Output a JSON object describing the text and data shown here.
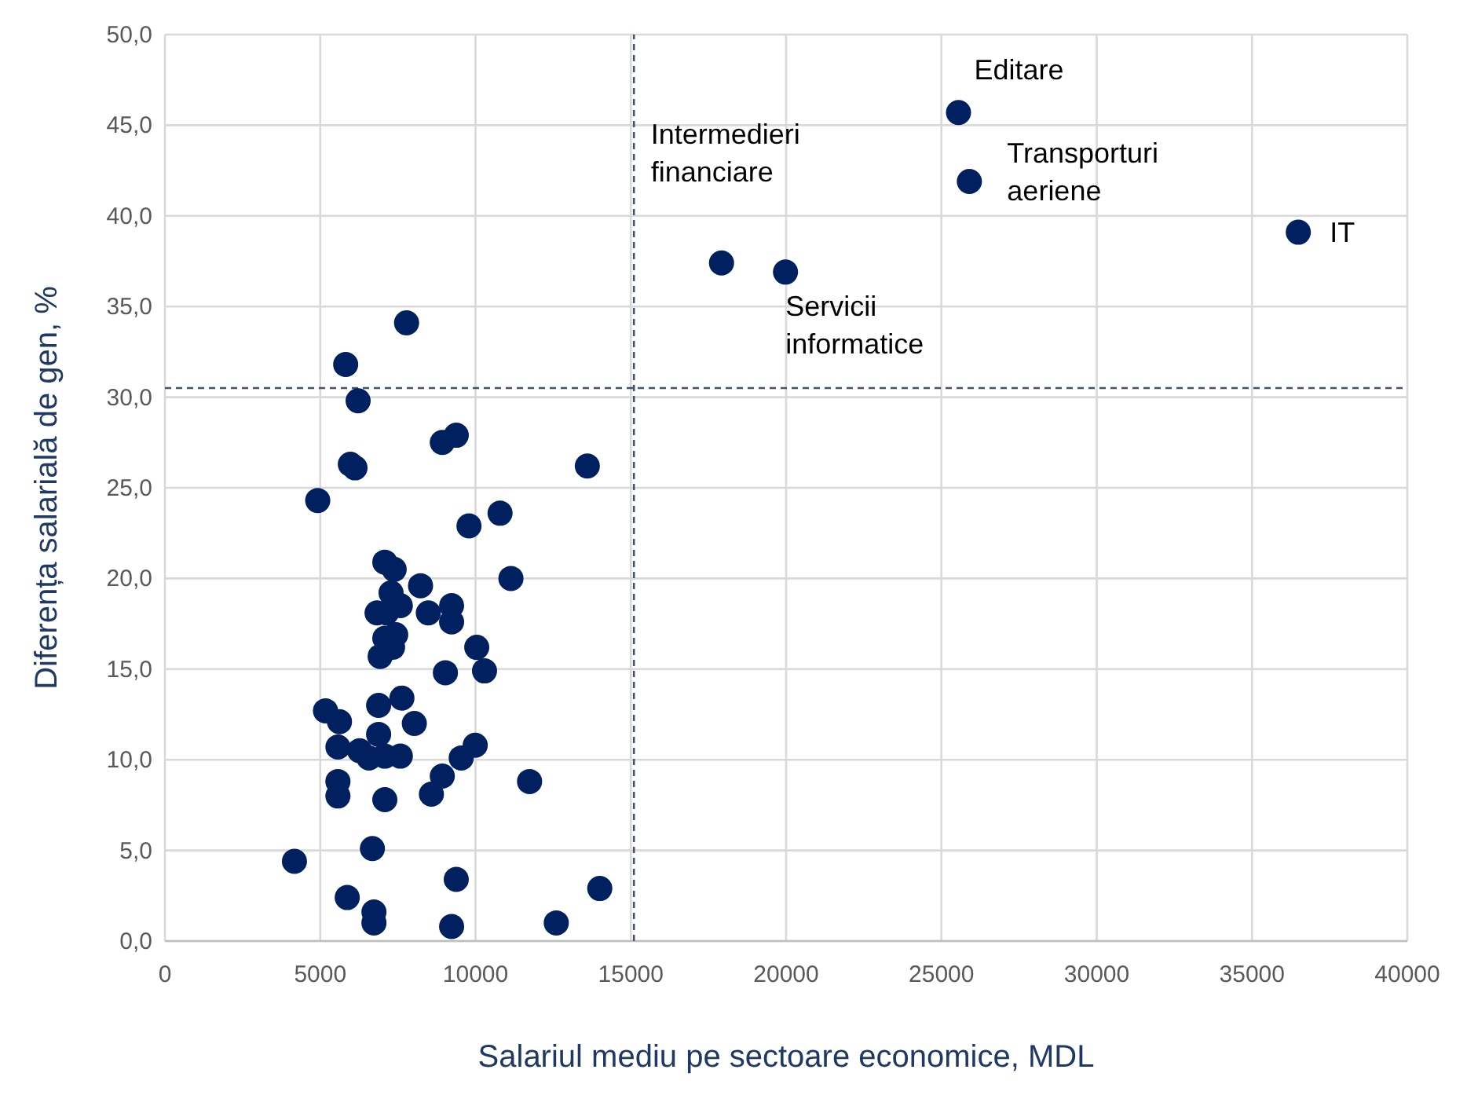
{
  "chart_data": {
    "type": "scatter",
    "xlabel": "Salariul mediu pe sectoare economice, MDL",
    "ylabel": "Diferența salarială de gen, %",
    "x": [
      7780,
      5820,
      6220,
      8930,
      9380,
      13600,
      5970,
      6120,
      4920,
      10790,
      9790,
      11140,
      7080,
      7380,
      8230,
      7280,
      7130,
      7580,
      8480,
      9230,
      9230,
      6830,
      7430,
      7080,
      7330,
      6930,
      10040,
      10290,
      9030,
      7630,
      6880,
      5170,
      5620,
      8030,
      6880,
      5570,
      6270,
      6570,
      7080,
      7580,
      9540,
      9990,
      5570,
      5570,
      7080,
      8930,
      8580,
      11740,
      6680,
      4170,
      5870,
      6730,
      6730,
      9380,
      9230,
      12600,
      14000,
      17920,
      19980,
      25550,
      25900,
      36490
    ],
    "series": [
      {
        "color": "#002060",
        "values": [
          34.1,
          31.8,
          29.8,
          27.5,
          27.9,
          26.2,
          26.3,
          26.1,
          24.3,
          23.6,
          22.9,
          20.0,
          20.9,
          20.5,
          19.6,
          19.2,
          18.1,
          18.5,
          18.1,
          18.5,
          17.6,
          18.1,
          16.9,
          16.7,
          16.2,
          15.7,
          16.2,
          14.9,
          14.8,
          13.4,
          13.0,
          12.7,
          12.1,
          12.0,
          11.4,
          10.7,
          10.5,
          10.1,
          10.2,
          10.2,
          10.1,
          10.8,
          8.8,
          8.0,
          7.8,
          9.1,
          8.1,
          8.8,
          5.1,
          4.4,
          2.4,
          1.6,
          1.0,
          3.4,
          0.8,
          1.0,
          2.9,
          37.4,
          36.9,
          45.7,
          41.9,
          39.1
        ]
      }
    ],
    "xlim": [
      0,
      40000
    ],
    "xticks": [
      0,
      5000,
      10000,
      15000,
      20000,
      25000,
      30000,
      35000,
      40000
    ],
    "ylim": [
      0,
      50
    ],
    "yticks": [
      {
        "value": 0,
        "label": "0,0"
      },
      {
        "value": 5,
        "label": "5,0"
      },
      {
        "value": 10,
        "label": "10,0"
      },
      {
        "value": 15,
        "label": "15,0"
      },
      {
        "value": 20,
        "label": "20,0"
      },
      {
        "value": 25,
        "label": "25,0"
      },
      {
        "value": 30,
        "label": "30,0"
      },
      {
        "value": 35,
        "label": "35,0"
      },
      {
        "value": 40,
        "label": "40,0"
      },
      {
        "value": 45,
        "label": "45,0"
      },
      {
        "value": 50,
        "label": "50,0"
      }
    ],
    "grid": true,
    "marker": "circle",
    "ref_lines": [
      {
        "axis": "x",
        "value": 15100,
        "color": "#44546a",
        "line_style": "dashed"
      },
      {
        "axis": "y",
        "value": 30.5,
        "color": "#44546a",
        "line_style": "dashed"
      }
    ],
    "annotations": [
      {
        "text": "Intermedieri\nfinanciare",
        "x": 17920,
        "y": 37.4
      },
      {
        "text": "Servicii\ninformatice",
        "x": 19980,
        "y": 36.9
      },
      {
        "text": "Editare",
        "x": 25550,
        "y": 45.7
      },
      {
        "text": "Transporturi\naeriene",
        "x": 25900,
        "y": 41.9
      },
      {
        "text": "IT",
        "x": 36490,
        "y": 39.1
      }
    ]
  }
}
